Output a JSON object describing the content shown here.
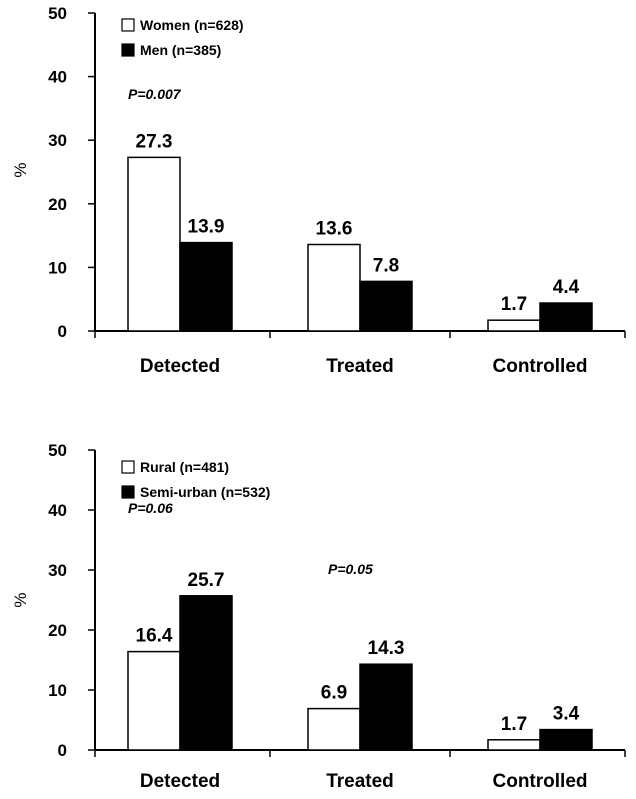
{
  "chart_data": [
    {
      "type": "bar",
      "categories": [
        "Detected",
        "Treated",
        "Controlled"
      ],
      "series": [
        {
          "name": "Women (n=628)",
          "values": [
            27.3,
            13.6,
            1.7
          ],
          "fill": "#ffffff"
        },
        {
          "name": "Men (n=385)",
          "values": [
            13.9,
            7.8,
            4.4
          ],
          "fill": "#000000"
        }
      ],
      "value_labels": [
        "27.3",
        "13.6",
        "1.7",
        "13.9",
        "7.8",
        "4.4"
      ],
      "yticks": [
        "0",
        "10",
        "20",
        "30",
        "40",
        "50"
      ],
      "ylim": [
        0,
        50
      ],
      "ylabel": "%",
      "xlabel": "",
      "title": "",
      "legend": "top-left",
      "annotations": [
        {
          "text": "P=0.007",
          "category": "Detected",
          "y": 36.5
        }
      ]
    },
    {
      "type": "bar",
      "categories": [
        "Detected",
        "Treated",
        "Controlled"
      ],
      "series": [
        {
          "name": "Rural (n=481)",
          "values": [
            16.4,
            6.9,
            1.7
          ],
          "fill": "#ffffff"
        },
        {
          "name": "Semi-urban (n=532)",
          "values": [
            25.7,
            14.3,
            3.4
          ],
          "fill": "#000000"
        }
      ],
      "value_labels": [
        "16.4",
        "6.9",
        "1.7",
        "25.7",
        "14.3",
        "3.4"
      ],
      "yticks": [
        "0",
        "10",
        "20",
        "30",
        "40",
        "50"
      ],
      "ylim": [
        0,
        50
      ],
      "ylabel": "%",
      "xlabel": "",
      "title": "",
      "legend": "top-left",
      "annotations": [
        {
          "text": "P=0.06",
          "category": "Detected",
          "y": 39.5
        },
        {
          "text": "P=0.05",
          "category": "Treated",
          "y": 29.3
        }
      ]
    }
  ]
}
